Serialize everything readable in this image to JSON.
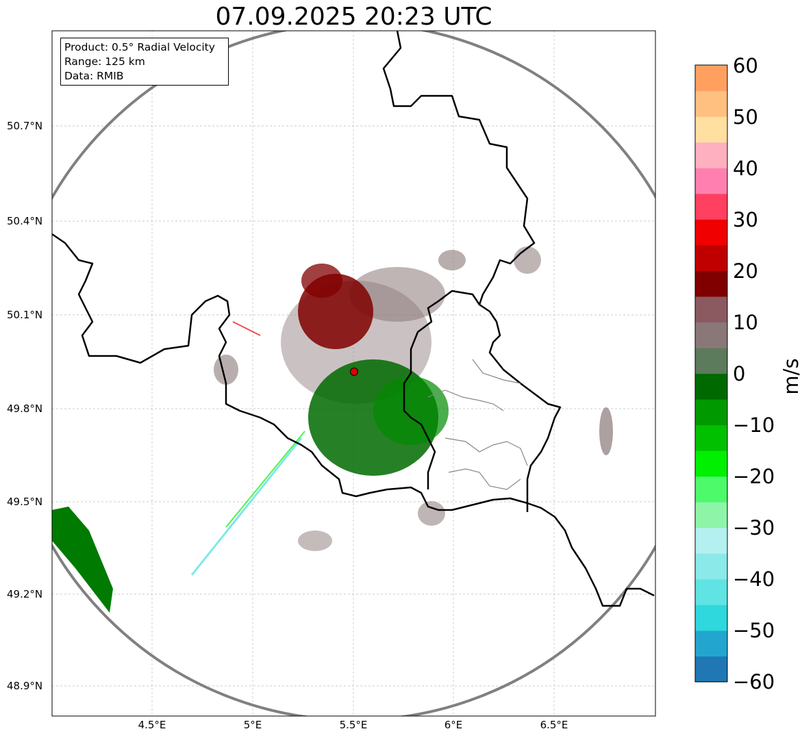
{
  "title": "07.09.2025 20:23 UTC",
  "info_box": {
    "line1": "Product: 0.5° Radial Velocity",
    "line2": "Range: 125 km",
    "line3": "Data: RMIB"
  },
  "axes": {
    "lat_ticks": [
      "50.7°N",
      "50.4°N",
      "50.1°N",
      "49.8°N",
      "49.5°N",
      "49.2°N",
      "48.9°N"
    ],
    "lon_ticks": [
      "4.5°E",
      "5°E",
      "5.5°E",
      "6°E",
      "6.5°E"
    ]
  },
  "colorbar": {
    "label": "m/s",
    "ticks": [
      "60",
      "50",
      "40",
      "30",
      "20",
      "10",
      "0",
      "−10",
      "−20",
      "−30",
      "−40",
      "−50",
      "−60"
    ],
    "colors": [
      "#1f77b4",
      "#22a6cf",
      "#2ed8dc",
      "#5fe3e3",
      "#8be9ea",
      "#b4f0f0",
      "#8ef5a8",
      "#4dfa6a",
      "#00f000",
      "#00c000",
      "#009a00",
      "#006a00",
      "#5c7a5c",
      "#8a7878",
      "#8a5a60",
      "#800000",
      "#c00000",
      "#f00000",
      "#ff4060",
      "#ff80b0",
      "#ffb0c0",
      "#ffe0a0",
      "#ffc080",
      "#ffa060"
    ]
  },
  "radar_site": {
    "lat": 49.914,
    "lon": 5.505
  }
}
